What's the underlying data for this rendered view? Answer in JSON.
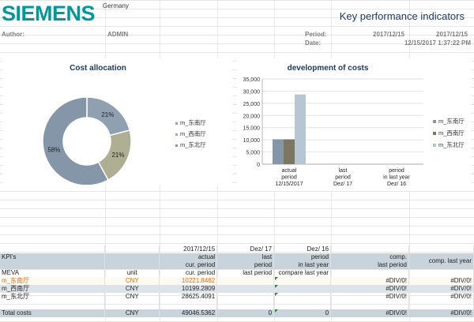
{
  "header": {
    "logo": "SIEMENS",
    "country": "Germany",
    "title": "Key performance indicators",
    "author_label": "Author:",
    "author_value": "ADMIN",
    "period_label": "Period:",
    "period_from": "2017/12/15",
    "period_to": "2017/12/15",
    "date_label": "Date:",
    "date_value": "12/15/2017 1:37:22 PM"
  },
  "colors": {
    "brand": "#009999",
    "title": "#1f3a60",
    "series1": "#8496a8",
    "series2": "#7d7762",
    "series3": "#b6c6d4",
    "highlight": "#e46c0a"
  },
  "chart_data": [
    {
      "type": "pie",
      "title": "Cost allocation",
      "labels": [
        "m_东南厅",
        "m_西南厅",
        "m_东北厅"
      ],
      "values": [
        21,
        21,
        58
      ],
      "value_labels": [
        "21%",
        "21%",
        "58%"
      ],
      "colors": [
        "#8fa0b1",
        "#aeae92",
        "#8496a8"
      ],
      "legend_position": "right"
    },
    {
      "type": "bar",
      "title": "development  of costs",
      "categories": [
        [
          "actual",
          "period",
          "12/15/2017"
        ],
        [
          "last",
          "period",
          "Dez/ 17"
        ],
        [
          "period",
          "in last year",
          "Dez/ 16"
        ]
      ],
      "series": [
        {
          "name": "m_东南厅",
          "values": [
            10221.8462,
            0,
            0
          ]
        },
        {
          "name": "m_西南厅",
          "values": [
            10199.2809,
            0,
            0
          ]
        },
        {
          "name": "m_东北厅",
          "values": [
            28625.4091,
            0,
            0
          ]
        }
      ],
      "yticks": [
        "0",
        "5,000",
        "10,000",
        "15,000",
        "20,000",
        "25,000",
        "30,000",
        "35,000"
      ],
      "ylim": [
        0,
        35000
      ],
      "grid": true,
      "legend_position": "right"
    }
  ],
  "table": {
    "col_periods": [
      "2017/12/15",
      "Dez/ 17",
      "Dez/ 16"
    ],
    "head1": [
      "KPI's",
      "",
      "actual",
      "last",
      "period",
      "comp.",
      ""
    ],
    "head2": [
      "",
      "",
      "cur. period",
      "period",
      "in last year",
      "last period",
      "comp. last year"
    ],
    "meva": [
      "MEVA",
      "unit",
      "cur. period",
      "last period",
      "compare last year",
      "",
      ""
    ],
    "rows": [
      {
        "name": "m_东南厅",
        "unit": "CNY",
        "value": "10221.8462",
        "last": "",
        "lastyear": "",
        "comp": "#DIV/0!",
        "comp_year": "#DIV/0!",
        "highlight": true
      },
      {
        "name": "m_西南厅",
        "unit": "CNY",
        "value": "10199.2809",
        "last": "",
        "lastyear": "",
        "comp": "#DIV/0!",
        "comp_year": "#DIV/0!"
      },
      {
        "name": "m_东北厅",
        "unit": "CNY",
        "value": "28625.4091",
        "last": "",
        "lastyear": "",
        "comp": "#DIV/0!",
        "comp_year": "#DIV/0!"
      }
    ],
    "total": {
      "name": "Total costs",
      "unit": "CNY",
      "value": "49046.5362",
      "last": "0",
      "lastyear": "0",
      "comp": "#DIV/0!",
      "comp_year": "#DIV/0!"
    }
  }
}
